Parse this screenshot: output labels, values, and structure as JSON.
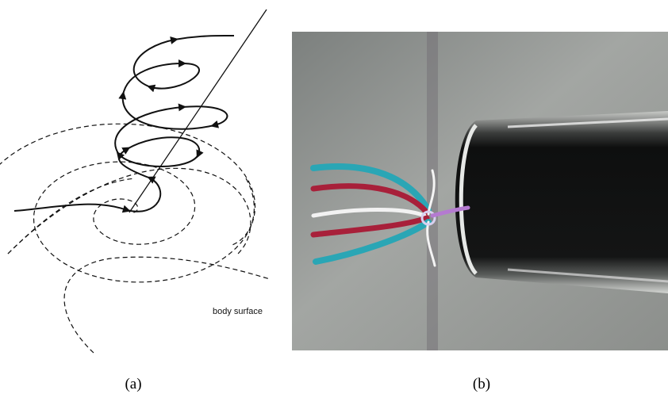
{
  "panels": [
    {
      "label": "(a)",
      "annotation": "body surface"
    },
    {
      "label": "(b)"
    }
  ]
}
